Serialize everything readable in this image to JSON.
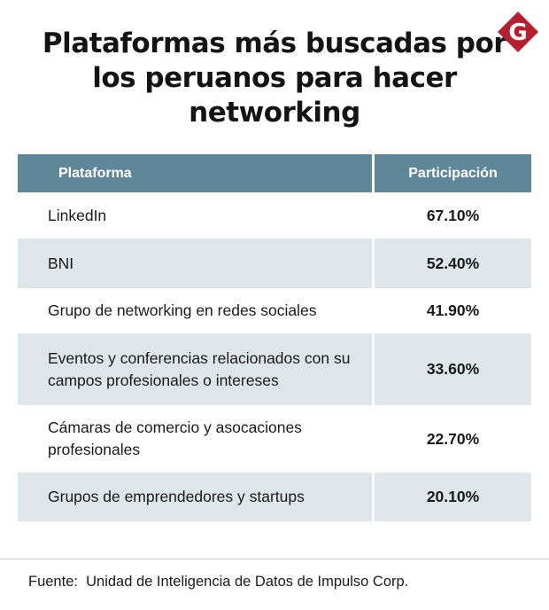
{
  "title": "Plataformas más buscadas por los peruanos para hacer networking",
  "logo": {
    "letter": "G",
    "color": "#b5202e"
  },
  "chart_data": {
    "type": "table",
    "title": "Plataformas más buscadas por los peruanos para hacer networking",
    "columns": [
      "Plataforma",
      "Participación"
    ],
    "rows": [
      {
        "plataforma": "LinkedIn",
        "participacion": "67.10%",
        "value": 67.1
      },
      {
        "plataforma": "BNI",
        "participacion": "52.40%",
        "value": 52.4
      },
      {
        "plataforma": "Grupo de networking en redes sociales",
        "participacion": "41.90%",
        "value": 41.9
      },
      {
        "plataforma": "Eventos y conferencias relacionados con su campos profesionales o intereses",
        "participacion": "33.60%",
        "value": 33.6
      },
      {
        "plataforma": "Cámaras de comercio y asocaciones profesionales",
        "participacion": "22.70%",
        "value": 22.7
      },
      {
        "plataforma": "Grupos de emprendedores y startups",
        "participacion": "20.10%",
        "value": 20.1
      }
    ]
  },
  "source": "Fuente:  Unidad de Inteligencia de Datos de Impulso Corp.",
  "colors": {
    "header_bg": "#5f8797",
    "row_shade": "#dfe6ea",
    "text": "#1a1a1a"
  }
}
